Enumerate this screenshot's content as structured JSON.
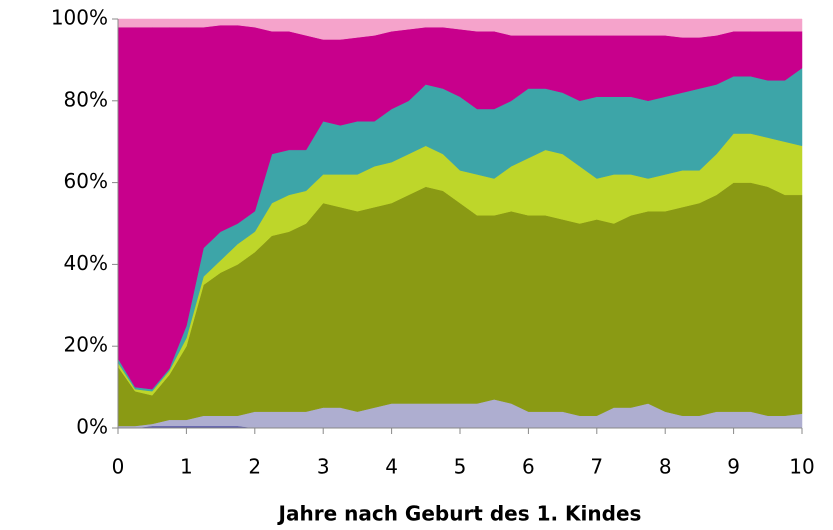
{
  "chart_data": {
    "type": "stacked_area",
    "x_label": "Jahre nach Geburt des 1. Kindes",
    "x": [
      0,
      0.25,
      0.5,
      0.75,
      1,
      1.25,
      1.5,
      1.75,
      2,
      2.25,
      2.5,
      2.75,
      3,
      3.25,
      3.5,
      3.75,
      4,
      4.25,
      4.5,
      4.75,
      5,
      5.25,
      5.5,
      5.75,
      6,
      6.25,
      6.5,
      6.75,
      7,
      7.25,
      7.5,
      7.75,
      8,
      8.25,
      8.5,
      8.75,
      9,
      9.25,
      9.5,
      9.75,
      10
    ],
    "xlim": [
      0,
      10
    ],
    "xticks": [
      0,
      1,
      2,
      3,
      4,
      5,
      6,
      7,
      8,
      9,
      10
    ],
    "ylim": [
      0,
      100
    ],
    "yticks": [
      {
        "value": 0,
        "label": "0%"
      },
      {
        "value": 20,
        "label": "20%"
      },
      {
        "value": 40,
        "label": "40%"
      },
      {
        "value": 60,
        "label": "60%"
      },
      {
        "value": 80,
        "label": "80%"
      },
      {
        "value": 100,
        "label": "100%"
      }
    ],
    "series": [
      {
        "color": "#5a5aa8",
        "values": [
          0,
          0,
          0.5,
          0.5,
          0.5,
          0.5,
          0.5,
          0.5,
          0,
          0,
          0,
          0,
          0,
          0,
          0,
          0,
          0,
          0,
          0,
          0,
          0,
          0,
          0,
          0,
          0,
          0,
          0,
          0,
          0,
          0,
          0,
          0,
          0,
          0,
          0,
          0,
          0,
          0,
          0,
          0,
          0
        ]
      },
      {
        "color": "#aeaed0",
        "values": [
          0.5,
          0.5,
          0.5,
          1.5,
          1.5,
          2.5,
          2.5,
          2.5,
          4,
          4,
          4,
          4,
          5,
          5,
          4,
          5,
          6,
          6,
          6,
          6,
          6,
          6,
          7,
          6,
          4,
          4,
          4,
          3,
          3,
          5,
          5,
          6,
          4,
          3,
          3,
          4,
          4,
          4,
          3,
          3,
          3.5
        ]
      },
      {
        "color": "#8a9a14",
        "values": [
          14.5,
          8.5,
          7,
          11,
          18,
          32,
          35,
          37,
          39,
          43,
          44,
          46,
          50,
          49,
          49,
          49,
          49,
          51,
          53,
          52,
          49,
          46,
          45,
          47,
          48,
          48,
          47,
          47,
          48,
          45,
          47,
          47,
          49,
          51,
          52,
          53,
          56,
          56,
          56,
          54,
          53.5
        ]
      },
      {
        "color": "#bed62a",
        "values": [
          1,
          0.5,
          1,
          1,
          2,
          2,
          3,
          5,
          5,
          8,
          9,
          8,
          7,
          8,
          9,
          10,
          10,
          10,
          10,
          9,
          8,
          10,
          9,
          11,
          14,
          16,
          16,
          14,
          10,
          12,
          10,
          8,
          9,
          9,
          8,
          10,
          12,
          12,
          12,
          13,
          12
        ]
      },
      {
        "color": "#3da5a8",
        "values": [
          1,
          0.5,
          0.5,
          0.5,
          3,
          7,
          7,
          5,
          5,
          12,
          11,
          10,
          13,
          12,
          13,
          11,
          13,
          13,
          15,
          16,
          18,
          16,
          17,
          16,
          17,
          15,
          15,
          16,
          20,
          19,
          19,
          19,
          19,
          19,
          20,
          17,
          14,
          14,
          14,
          15,
          19
        ]
      },
      {
        "color": "#c8008c",
        "values": [
          81,
          88,
          88.5,
          83.5,
          73,
          54,
          50.5,
          48.5,
          45,
          30,
          29,
          28,
          20,
          21,
          20.5,
          21,
          19,
          17.5,
          14,
          15,
          16.5,
          19,
          19,
          16,
          13,
          13,
          14,
          16,
          15,
          15,
          15,
          16,
          15,
          13.5,
          12.5,
          12,
          11,
          11,
          12,
          12,
          9
        ]
      },
      {
        "color": "#f5a3cb",
        "values": [
          2,
          2,
          2,
          2,
          2,
          2,
          1.5,
          1.5,
          2,
          3,
          3,
          4,
          5,
          5,
          4.5,
          4,
          3,
          2.5,
          2,
          2,
          2.5,
          3,
          3,
          4,
          4,
          4,
          4,
          4,
          4,
          4,
          4,
          4,
          4,
          4.5,
          4.5,
          4,
          3,
          3,
          3,
          3,
          3
        ]
      }
    ]
  }
}
